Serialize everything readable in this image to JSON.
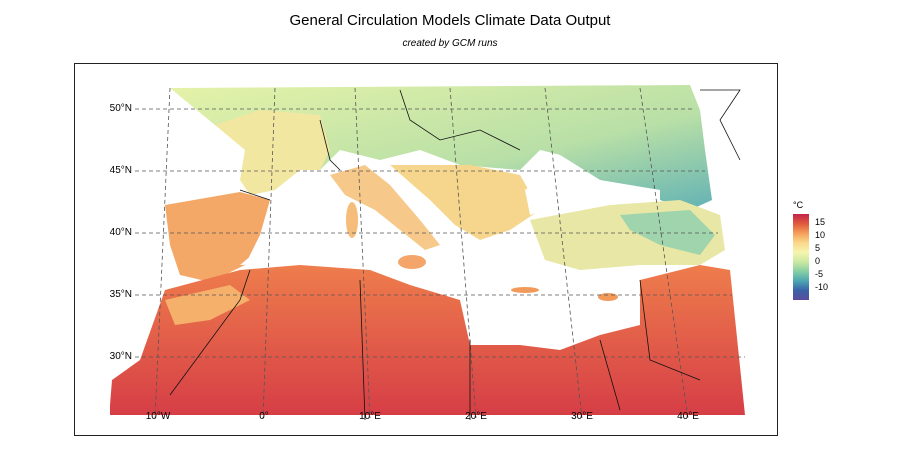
{
  "title": "General Circulation Models Climate Data Output",
  "subtitle": "created by GCM runs",
  "map": {
    "lat_labels": [
      "50°N",
      "45°N",
      "40°N",
      "35°N",
      "30°N"
    ],
    "lon_labels": [
      "10°W",
      "0°",
      "10°E",
      "20°E",
      "30°E",
      "40°E"
    ],
    "variable": "temperature",
    "region": "Mediterranean"
  },
  "legend": {
    "unit": "°C",
    "ticks": [
      "15",
      "10",
      "5",
      "0",
      "-5",
      "-10"
    ],
    "colors": [
      "#c0234a",
      "#e0593d",
      "#f59e5a",
      "#fbd88a",
      "#f6f4b0",
      "#cdeaa0",
      "#86cfa5",
      "#4ea6b3",
      "#3a62a8",
      "#5a4c9c"
    ]
  }
}
